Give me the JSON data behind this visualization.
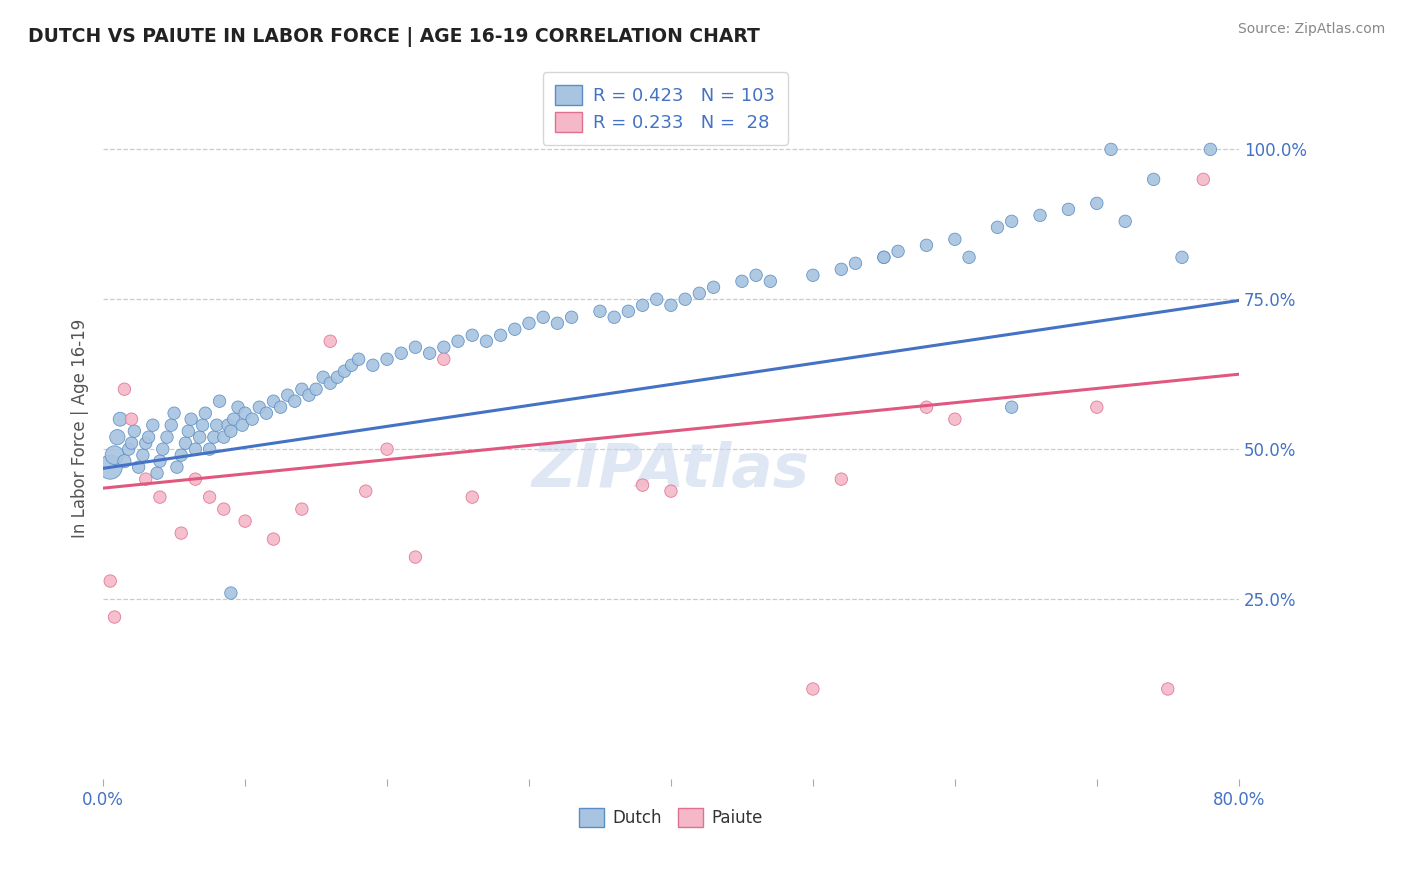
{
  "title": "DUTCH VS PAIUTE IN LABOR FORCE | AGE 16-19 CORRELATION CHART",
  "source_text": "Source: ZipAtlas.com",
  "ylabel": "In Labor Force | Age 16-19",
  "xlim": [
    0.0,
    0.8
  ],
  "ylim": [
    -0.05,
    1.12
  ],
  "xticks": [
    0.0,
    0.1,
    0.2,
    0.3,
    0.4,
    0.5,
    0.6,
    0.7,
    0.8
  ],
  "xticklabels": [
    "0.0%",
    "",
    "",
    "",
    "",
    "",
    "",
    "",
    "80.0%"
  ],
  "ytick_positions": [
    0.25,
    0.5,
    0.75,
    1.0
  ],
  "ytick_labels": [
    "25.0%",
    "50.0%",
    "75.0%",
    "100.0%"
  ],
  "dutch_R": 0.423,
  "dutch_N": 103,
  "paiute_R": 0.233,
  "paiute_N": 28,
  "dutch_color": "#a8c4e0",
  "dutch_edge_color": "#5b8ec4",
  "dutch_line_color": "#4472c4",
  "paiute_color": "#f4b8c8",
  "paiute_edge_color": "#e07090",
  "paiute_line_color": "#e05880",
  "legend_color": "#4472c4",
  "watermark_color": "#c8d8ec",
  "background_color": "#ffffff",
  "grid_color": "#cccccc",
  "title_color": "#222222",
  "dutch_x": [
    0.005,
    0.008,
    0.01,
    0.012,
    0.015,
    0.018,
    0.02,
    0.022,
    0.025,
    0.028,
    0.03,
    0.032,
    0.035,
    0.038,
    0.04,
    0.042,
    0.045,
    0.048,
    0.05,
    0.052,
    0.055,
    0.058,
    0.06,
    0.062,
    0.065,
    0.068,
    0.07,
    0.072,
    0.075,
    0.078,
    0.08,
    0.082,
    0.085,
    0.088,
    0.09,
    0.092,
    0.095,
    0.098,
    0.1,
    0.105,
    0.11,
    0.115,
    0.12,
    0.125,
    0.13,
    0.135,
    0.14,
    0.145,
    0.15,
    0.155,
    0.16,
    0.165,
    0.17,
    0.175,
    0.18,
    0.19,
    0.2,
    0.21,
    0.22,
    0.23,
    0.24,
    0.25,
    0.26,
    0.27,
    0.28,
    0.29,
    0.3,
    0.31,
    0.32,
    0.33,
    0.35,
    0.36,
    0.37,
    0.38,
    0.39,
    0.4,
    0.41,
    0.42,
    0.43,
    0.45,
    0.46,
    0.47,
    0.5,
    0.52,
    0.53,
    0.55,
    0.56,
    0.58,
    0.6,
    0.61,
    0.63,
    0.64,
    0.66,
    0.68,
    0.7,
    0.72,
    0.74,
    0.76,
    0.78,
    0.64,
    0.71,
    0.55,
    0.09
  ],
  "dutch_y": [
    0.47,
    0.49,
    0.52,
    0.55,
    0.48,
    0.5,
    0.51,
    0.53,
    0.47,
    0.49,
    0.51,
    0.52,
    0.54,
    0.46,
    0.48,
    0.5,
    0.52,
    0.54,
    0.56,
    0.47,
    0.49,
    0.51,
    0.53,
    0.55,
    0.5,
    0.52,
    0.54,
    0.56,
    0.5,
    0.52,
    0.54,
    0.58,
    0.52,
    0.54,
    0.53,
    0.55,
    0.57,
    0.54,
    0.56,
    0.55,
    0.57,
    0.56,
    0.58,
    0.57,
    0.59,
    0.58,
    0.6,
    0.59,
    0.6,
    0.62,
    0.61,
    0.62,
    0.63,
    0.64,
    0.65,
    0.64,
    0.65,
    0.66,
    0.67,
    0.66,
    0.67,
    0.68,
    0.69,
    0.68,
    0.69,
    0.7,
    0.71,
    0.72,
    0.71,
    0.72,
    0.73,
    0.72,
    0.73,
    0.74,
    0.75,
    0.74,
    0.75,
    0.76,
    0.77,
    0.78,
    0.79,
    0.78,
    0.79,
    0.8,
    0.81,
    0.82,
    0.83,
    0.84,
    0.85,
    0.82,
    0.87,
    0.88,
    0.89,
    0.9,
    0.91,
    0.88,
    0.95,
    0.82,
    1.0,
    0.57,
    1.0,
    0.82,
    0.26
  ],
  "dutch_sizes": [
    300,
    180,
    120,
    100,
    90,
    80,
    80,
    80,
    80,
    80,
    80,
    80,
    80,
    80,
    80,
    80,
    80,
    80,
    80,
    80,
    80,
    80,
    80,
    80,
    80,
    80,
    80,
    80,
    80,
    80,
    80,
    80,
    80,
    80,
    80,
    80,
    80,
    80,
    80,
    80,
    80,
    80,
    80,
    80,
    80,
    80,
    80,
    80,
    80,
    80,
    80,
    80,
    80,
    80,
    80,
    80,
    80,
    80,
    80,
    80,
    80,
    80,
    80,
    80,
    80,
    80,
    80,
    80,
    80,
    80,
    80,
    80,
    80,
    80,
    80,
    80,
    80,
    80,
    80,
    80,
    80,
    80,
    80,
    80,
    80,
    80,
    80,
    80,
    80,
    80,
    80,
    80,
    80,
    80,
    80,
    80,
    80,
    80,
    80,
    80,
    80,
    80,
    80
  ],
  "paiute_x": [
    0.005,
    0.008,
    0.015,
    0.02,
    0.03,
    0.04,
    0.055,
    0.065,
    0.075,
    0.085,
    0.1,
    0.12,
    0.14,
    0.16,
    0.185,
    0.2,
    0.22,
    0.24,
    0.26,
    0.38,
    0.4,
    0.5,
    0.52,
    0.58,
    0.6,
    0.7,
    0.75,
    0.775
  ],
  "paiute_y": [
    0.28,
    0.22,
    0.6,
    0.55,
    0.45,
    0.42,
    0.36,
    0.45,
    0.42,
    0.4,
    0.38,
    0.35,
    0.4,
    0.68,
    0.43,
    0.5,
    0.32,
    0.65,
    0.42,
    0.44,
    0.43,
    0.1,
    0.45,
    0.57,
    0.55,
    0.57,
    0.1,
    0.95
  ],
  "paiute_sizes": [
    80,
    80,
    80,
    80,
    80,
    80,
    80,
    80,
    80,
    80,
    80,
    80,
    80,
    80,
    80,
    80,
    80,
    80,
    80,
    80,
    80,
    80,
    80,
    80,
    80,
    80,
    80,
    80
  ],
  "dutch_trend_x": [
    0.0,
    0.8
  ],
  "dutch_trend_y": [
    0.468,
    0.748
  ],
  "paiute_trend_x": [
    0.0,
    0.8
  ],
  "paiute_trend_y": [
    0.435,
    0.625
  ]
}
